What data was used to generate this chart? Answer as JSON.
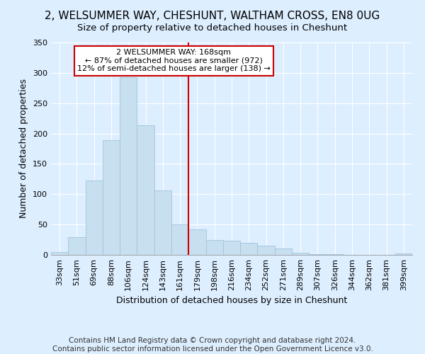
{
  "title": "2, WELSUMMER WAY, CHESHUNT, WALTHAM CROSS, EN8 0UG",
  "subtitle": "Size of property relative to detached houses in Cheshunt",
  "xlabel": "Distribution of detached houses by size in Cheshunt",
  "ylabel": "Number of detached properties",
  "bar_labels": [
    "33sqm",
    "51sqm",
    "69sqm",
    "88sqm",
    "106sqm",
    "124sqm",
    "143sqm",
    "161sqm",
    "179sqm",
    "198sqm",
    "216sqm",
    "234sqm",
    "252sqm",
    "271sqm",
    "289sqm",
    "307sqm",
    "326sqm",
    "344sqm",
    "362sqm",
    "381sqm",
    "399sqm"
  ],
  "bar_values": [
    5,
    29,
    123,
    189,
    293,
    213,
    106,
    50,
    42,
    24,
    23,
    20,
    15,
    11,
    3,
    1,
    1,
    0,
    0,
    0,
    2
  ],
  "bar_color": "#c8dff0",
  "bar_edge_color": "#a0c4dc",
  "vline_index": 7.5,
  "vline_color": "#cc0000",
  "annotation_title": "2 WELSUMMER WAY: 168sqm",
  "annotation_line1": "← 87% of detached houses are smaller (972)",
  "annotation_line2": "12% of semi-detached houses are larger (138) →",
  "annotation_box_facecolor": "#ffffff",
  "annotation_box_edgecolor": "#cc0000",
  "ylim": [
    0,
    350
  ],
  "yticks": [
    0,
    50,
    100,
    150,
    200,
    250,
    300,
    350
  ],
  "footer1": "Contains HM Land Registry data © Crown copyright and database right 2024.",
  "footer2": "Contains public sector information licensed under the Open Government Licence v3.0.",
  "background_color": "#ddeeff",
  "title_fontsize": 11,
  "subtitle_fontsize": 9.5,
  "axis_label_fontsize": 9,
  "tick_fontsize": 8,
  "annotation_fontsize": 8,
  "footer_fontsize": 7.5
}
